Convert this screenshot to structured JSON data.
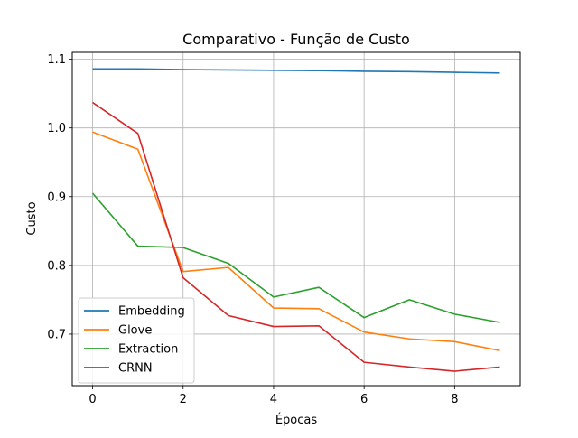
{
  "chart_data": {
    "type": "line",
    "title": "Comparativo - Função de Custo",
    "xlabel": "Épocas",
    "ylabel": "Custo",
    "xlim": [
      -0.45,
      9.45
    ],
    "ylim": [
      0.625,
      1.11
    ],
    "xticks": [
      0,
      2,
      4,
      6,
      8
    ],
    "yticks": [
      0.7,
      0.8,
      0.9,
      1.0,
      1.1
    ],
    "xtick_labels": [
      "0",
      "2",
      "4",
      "6",
      "8"
    ],
    "ytick_labels": [
      "0.7",
      "0.8",
      "0.9",
      "1.0",
      "1.1"
    ],
    "grid": true,
    "legend_position": "lower-left",
    "x": [
      0,
      1,
      2,
      3,
      4,
      5,
      6,
      7,
      8,
      9
    ],
    "series": [
      {
        "name": "Embedding",
        "color": "#1f77b4",
        "values": [
          1.086,
          1.086,
          1.085,
          1.0845,
          1.084,
          1.0835,
          1.0825,
          1.082,
          1.081,
          1.08
        ]
      },
      {
        "name": "Glove",
        "color": "#ff7f0e",
        "values": [
          0.994,
          0.969,
          0.791,
          0.797,
          0.738,
          0.737,
          0.703,
          0.693,
          0.689,
          0.676
        ]
      },
      {
        "name": "Extraction",
        "color": "#2ca02c",
        "values": [
          0.905,
          0.828,
          0.826,
          0.803,
          0.754,
          0.768,
          0.724,
          0.75,
          0.729,
          0.717
        ]
      },
      {
        "name": "CRNN",
        "color": "#d62728",
        "values": [
          1.037,
          0.992,
          0.782,
          0.727,
          0.711,
          0.712,
          0.659,
          0.652,
          0.646,
          0.652
        ]
      }
    ]
  }
}
